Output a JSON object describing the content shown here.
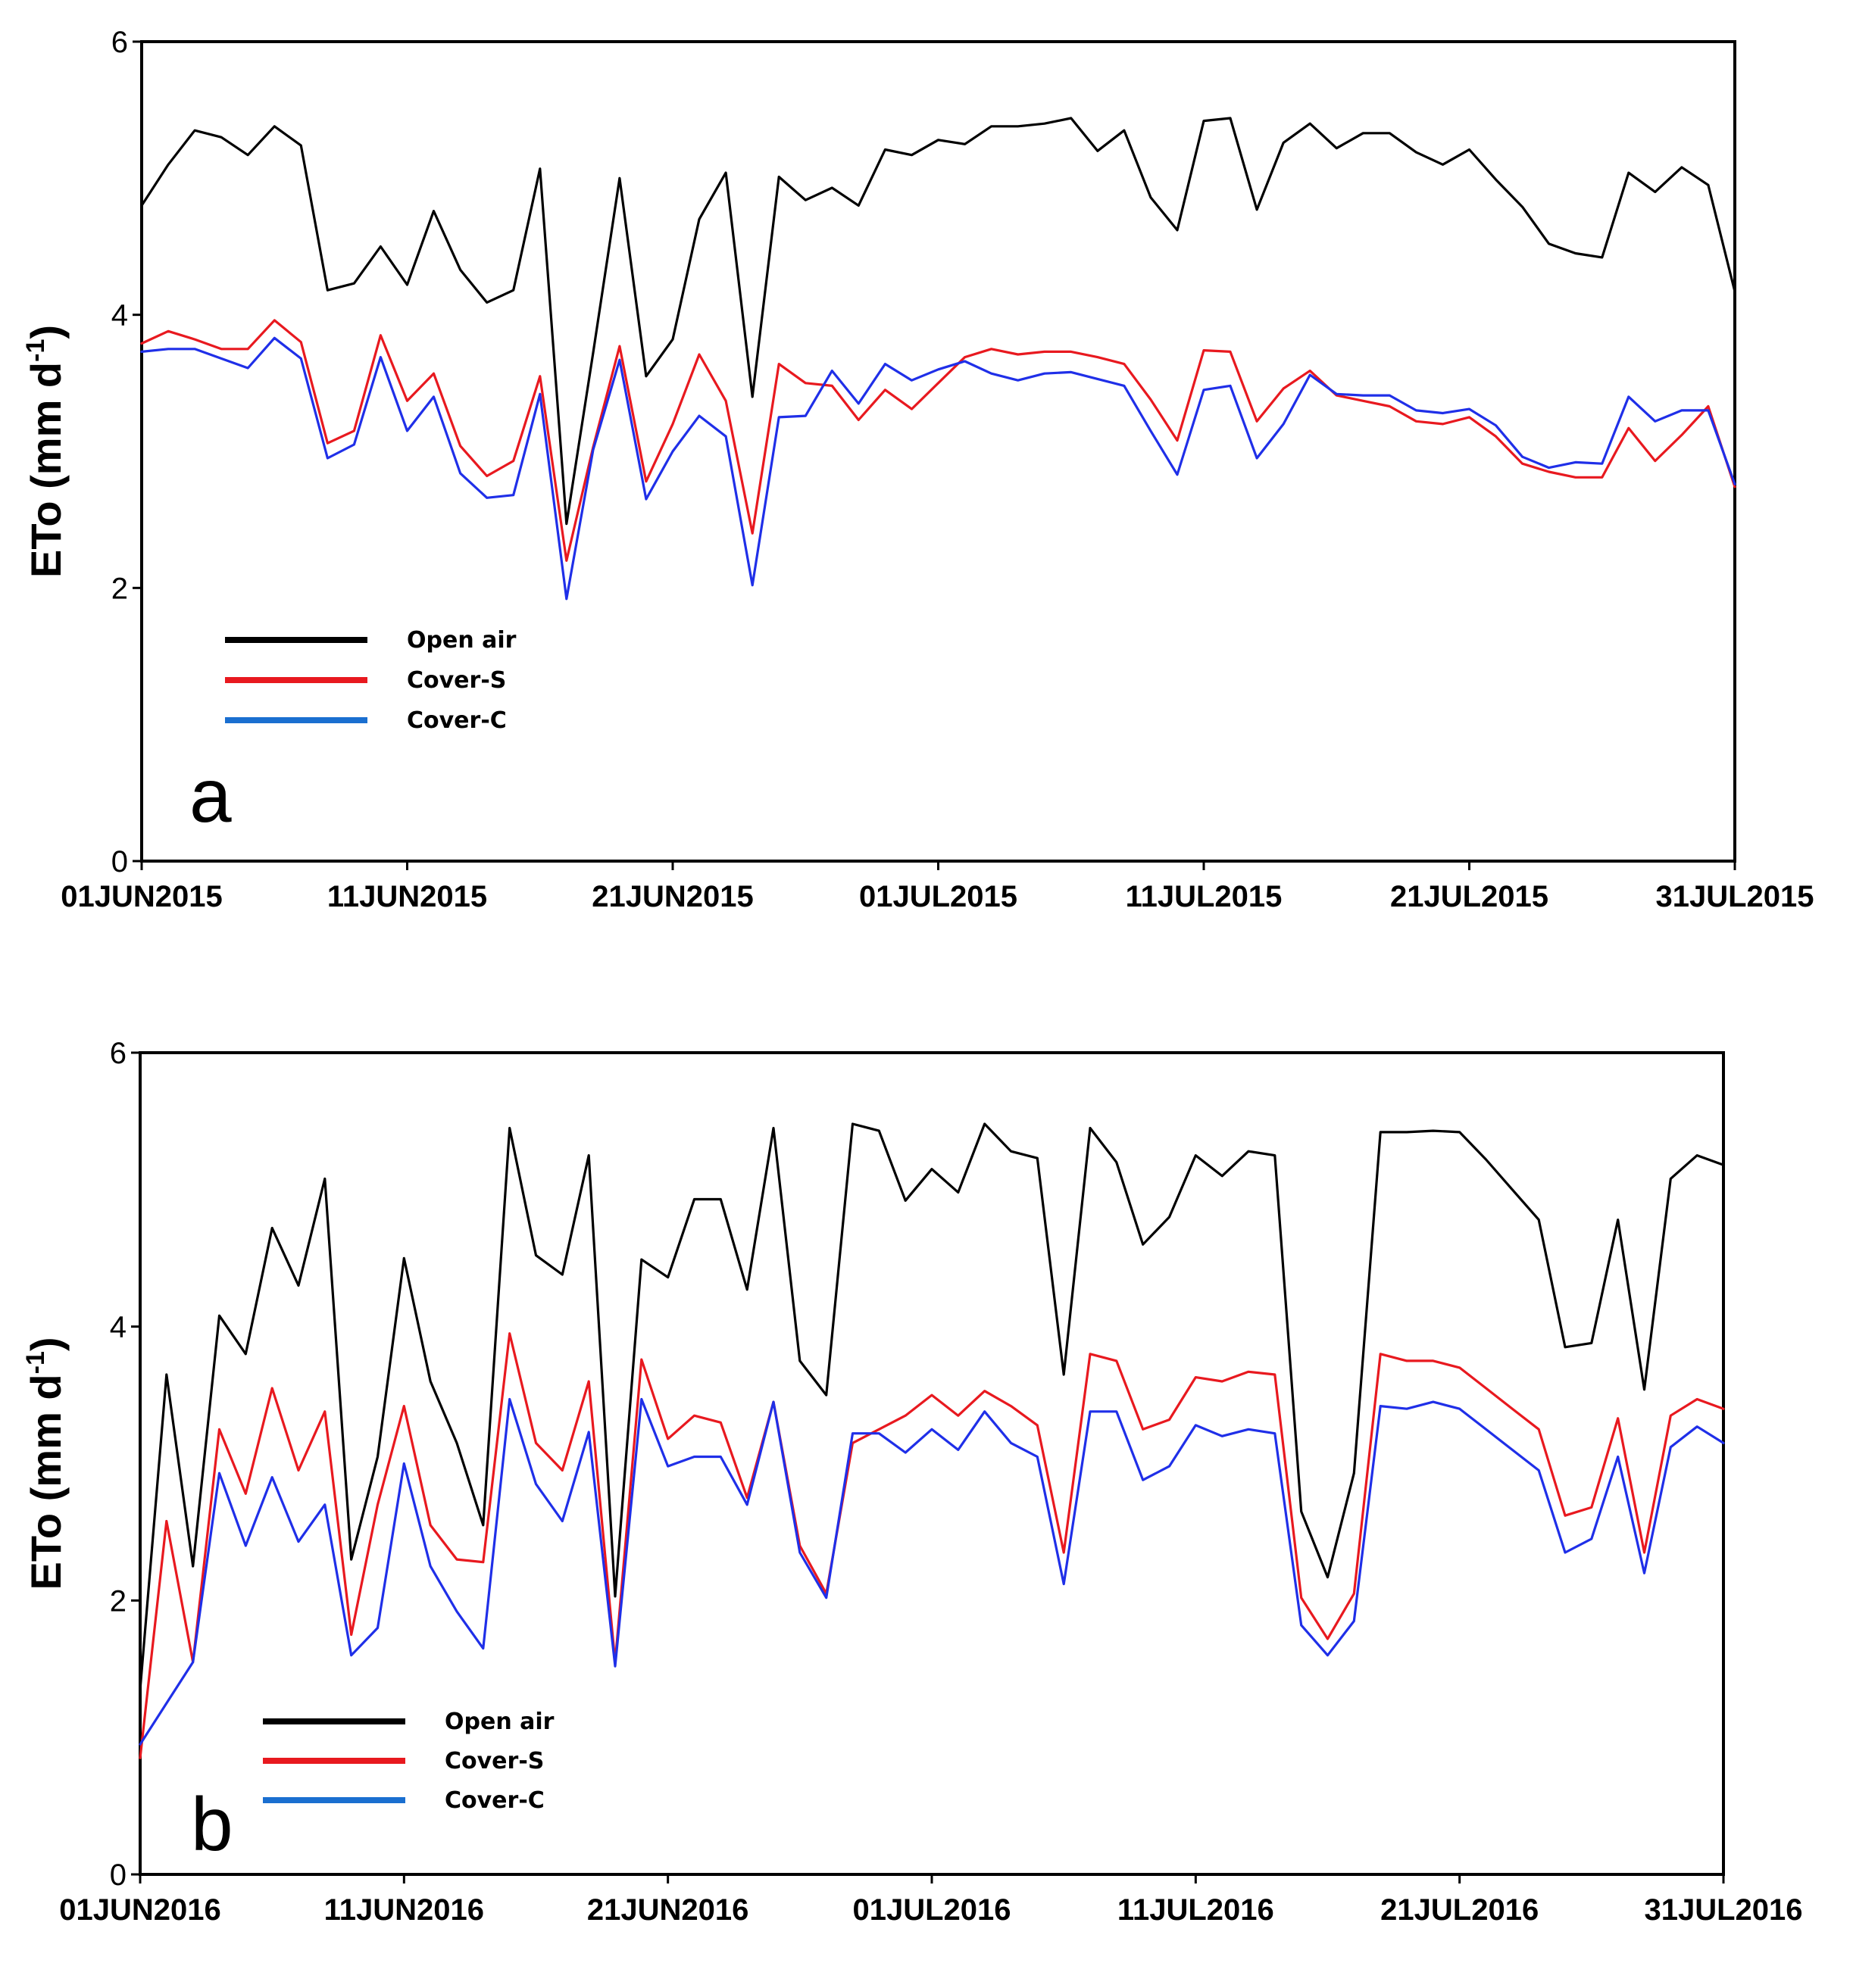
{
  "chart_data": [
    {
      "panel_label": "a",
      "type": "line",
      "ylabel": "ETo (mm d",
      "ylabel_sup": "-1",
      "ylabel_close": ")",
      "ylim": [
        0,
        6
      ],
      "yticks": [
        "0",
        "2",
        "4",
        "6"
      ],
      "xlim": [
        1,
        61
      ],
      "xticks": [
        {
          "label": "01JUN2015",
          "day": 1
        },
        {
          "label": "11JUN2015",
          "day": 11
        },
        {
          "label": "21JUN2015",
          "day": 21
        },
        {
          "label": "01JUL2015",
          "day": 31
        },
        {
          "label": "11JUL2015",
          "day": 41
        },
        {
          "label": "21JUL2015",
          "day": 51
        },
        {
          "label": "31JUL2015",
          "day": 61
        }
      ],
      "legend_position": "lower-left",
      "series": [
        {
          "name": "Open air",
          "color": "#000000",
          "values": [
            4.8,
            5.1,
            5.35,
            5.3,
            5.17,
            5.38,
            5.24,
            4.18,
            4.23,
            4.5,
            4.22,
            4.76,
            4.33,
            4.09,
            4.18,
            5.07,
            2.47,
            3.72,
            5.0,
            3.55,
            3.82,
            4.7,
            5.04,
            3.4,
            5.01,
            4.84,
            4.93,
            4.8,
            5.21,
            5.17,
            5.28,
            5.25,
            5.38,
            5.38,
            5.4,
            5.44,
            5.2,
            5.35,
            4.86,
            4.62,
            5.42,
            5.44,
            4.77,
            5.26,
            5.4,
            5.22,
            5.33,
            5.33,
            5.19,
            5.1,
            5.21,
            4.99,
            4.79,
            4.52,
            4.45,
            4.42,
            5.04,
            4.9,
            5.08,
            4.95,
            4.17
          ]
        },
        {
          "name": "Cover-S",
          "color": "#e8191f",
          "values": [
            3.79,
            3.88,
            3.82,
            3.75,
            3.75,
            3.96,
            3.8,
            3.06,
            3.15,
            3.85,
            3.37,
            3.57,
            3.04,
            2.82,
            2.93,
            3.55,
            2.2,
            3.03,
            3.77,
            2.78,
            3.2,
            3.71,
            3.37,
            2.4,
            3.64,
            3.5,
            3.48,
            3.23,
            3.45,
            3.31,
            3.5,
            3.69,
            3.75,
            3.71,
            3.73,
            3.73,
            3.69,
            3.64,
            3.38,
            3.08,
            3.74,
            3.73,
            3.22,
            3.46,
            3.59,
            3.41,
            3.37,
            3.33,
            3.22,
            3.2,
            3.25,
            3.11,
            2.91,
            2.85,
            2.81,
            2.81,
            3.17,
            2.93,
            3.12,
            3.33,
            2.74
          ]
        },
        {
          "name": "Cover-C",
          "color": "#1f2fe8",
          "values": [
            3.73,
            3.75,
            3.75,
            3.68,
            3.61,
            3.83,
            3.68,
            2.95,
            3.05,
            3.69,
            3.15,
            3.4,
            2.84,
            2.66,
            2.68,
            3.42,
            1.92,
            3.01,
            3.67,
            2.65,
            3.0,
            3.26,
            3.11,
            2.02,
            3.25,
            3.26,
            3.59,
            3.35,
            3.64,
            3.52,
            3.6,
            3.66,
            3.57,
            3.52,
            3.57,
            3.58,
            3.53,
            3.48,
            3.15,
            2.83,
            3.45,
            3.48,
            2.95,
            3.2,
            3.56,
            3.42,
            3.41,
            3.41,
            3.3,
            3.28,
            3.31,
            3.19,
            2.96,
            2.88,
            2.92,
            2.91,
            3.4,
            3.22,
            3.3,
            3.3,
            2.76
          ]
        }
      ]
    },
    {
      "panel_label": "b",
      "type": "line",
      "ylabel": "ETo (mm d",
      "ylabel_sup": "-1",
      "ylabel_close": ")",
      "ylim": [
        0,
        6
      ],
      "yticks": [
        "0",
        "2",
        "4",
        "6"
      ],
      "xlim": [
        1,
        61
      ],
      "xticks": [
        {
          "label": "01JUN2016",
          "day": 1
        },
        {
          "label": "11JUN2016",
          "day": 11
        },
        {
          "label": "21JUN2016",
          "day": 21
        },
        {
          "label": "01JUL2016",
          "day": 31
        },
        {
          "label": "11JUL2016",
          "day": 41
        },
        {
          "label": "21JUL2016",
          "day": 51
        },
        {
          "label": "31JUL2016",
          "day": 61
        }
      ],
      "legend_position": "lower-left",
      "series": [
        {
          "name": "Open air",
          "color": "#000000",
          "values": [
            1.35,
            3.65,
            2.25,
            4.08,
            3.8,
            4.72,
            4.3,
            5.08,
            2.3,
            3.05,
            4.5,
            3.6,
            3.15,
            2.55,
            5.45,
            4.52,
            4.38,
            5.25,
            2.03,
            4.49,
            4.36,
            4.93,
            4.93,
            4.27,
            5.45,
            3.75,
            3.5,
            5.48,
            5.43,
            4.92,
            5.15,
            4.98,
            5.48,
            5.28,
            5.23,
            3.65,
            5.45,
            5.2,
            4.6,
            4.8,
            5.25,
            5.1,
            5.28,
            5.25,
            2.65,
            2.17,
            2.93,
            5.42,
            5.42,
            5.43,
            5.42,
            5.22,
            5.0,
            4.78,
            3.85,
            3.88,
            4.78,
            3.54,
            5.08,
            5.25,
            5.18
          ]
        },
        {
          "name": "Cover-S",
          "color": "#e8191f",
          "values": [
            0.85,
            2.58,
            1.55,
            3.25,
            2.78,
            3.55,
            2.95,
            3.38,
            1.75,
            2.7,
            3.42,
            2.55,
            2.3,
            2.28,
            3.95,
            3.15,
            2.95,
            3.6,
            1.55,
            3.76,
            3.18,
            3.35,
            3.3,
            2.75,
            3.45,
            2.4,
            2.05,
            3.15,
            3.25,
            3.35,
            3.5,
            3.35,
            3.53,
            3.42,
            3.28,
            2.35,
            3.8,
            3.75,
            3.25,
            3.32,
            3.63,
            3.6,
            3.67,
            3.65,
            2.02,
            1.72,
            2.05,
            3.8,
            3.75,
            3.75,
            3.7,
            3.55,
            3.4,
            3.25,
            2.62,
            2.68,
            3.33,
            2.35,
            3.35,
            3.47,
            3.4
          ]
        },
        {
          "name": "Cover-C",
          "color": "#1f2fe8",
          "values": [
            0.95,
            1.25,
            1.55,
            2.93,
            2.4,
            2.9,
            2.43,
            2.7,
            1.6,
            1.8,
            3.0,
            2.25,
            1.92,
            1.65,
            3.47,
            2.85,
            2.58,
            3.23,
            1.52,
            3.47,
            2.98,
            3.05,
            3.05,
            2.7,
            3.45,
            2.35,
            2.02,
            3.22,
            3.22,
            3.08,
            3.25,
            3.1,
            3.38,
            3.15,
            3.05,
            2.12,
            3.38,
            3.38,
            2.88,
            2.98,
            3.28,
            3.2,
            3.25,
            3.22,
            1.82,
            1.6,
            1.85,
            3.42,
            3.4,
            3.45,
            3.4,
            3.25,
            3.1,
            2.95,
            2.35,
            2.45,
            3.05,
            2.2,
            3.12,
            3.27,
            3.15
          ]
        }
      ]
    }
  ]
}
